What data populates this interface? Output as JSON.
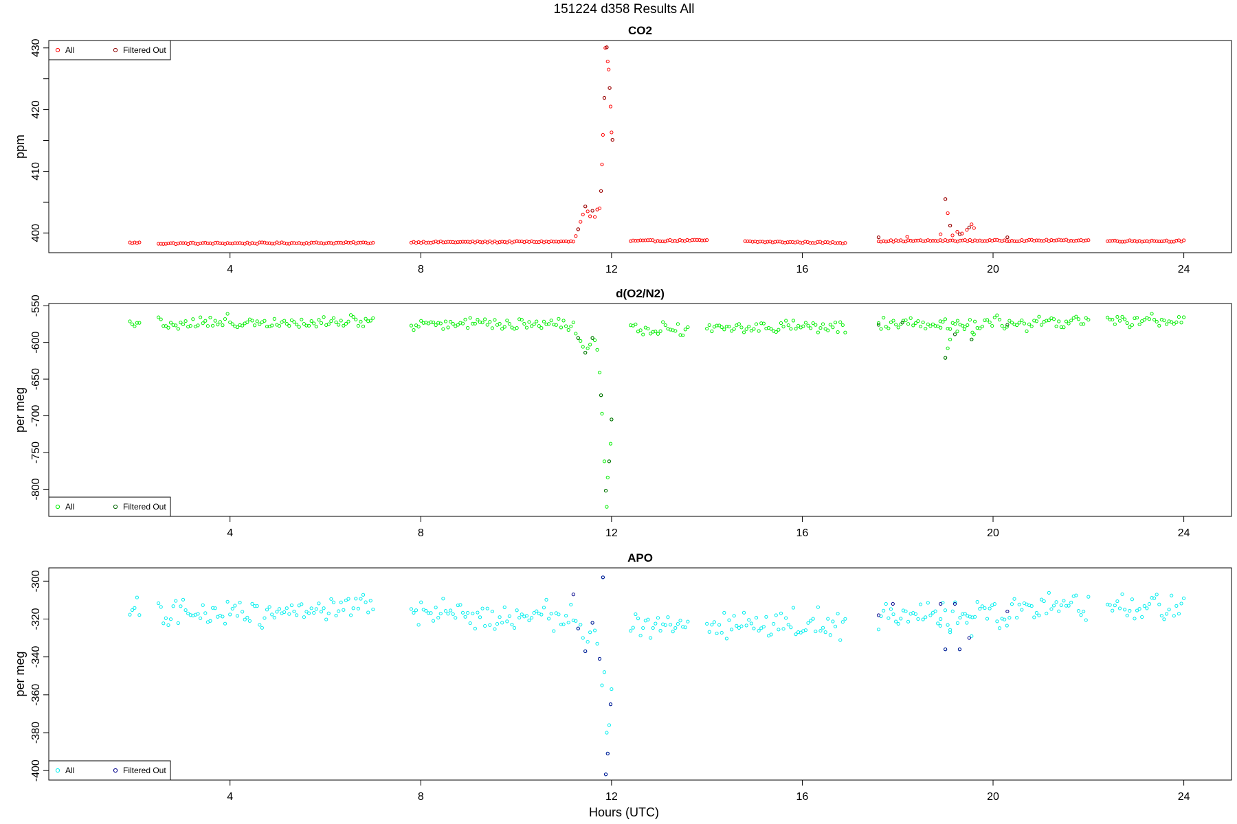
{
  "figure": {
    "title": "151224   d358   Results All",
    "xlabel": "Hours (UTC)"
  },
  "chart_data": [
    {
      "type": "scatter",
      "title": "CO2",
      "xlabel": "Hours (UTC)",
      "ylabel": "ppm",
      "xlim": [
        0.2,
        25.0
      ],
      "ylim": [
        396.8,
        431.2
      ],
      "xticks": [
        4,
        8,
        12,
        16,
        20,
        24
      ],
      "yticks": [
        400,
        410,
        420,
        430
      ],
      "yticks_minor": [
        405,
        415,
        425
      ],
      "legend": {
        "position": "top-left",
        "entries": [
          "All",
          "Filtered Out"
        ]
      },
      "series": [
        {
          "name": "All",
          "color": "#ff0000",
          "segments": [
            {
              "x": [
                1.9,
                2.1
              ],
              "y": [
                398.4,
                398.4
              ]
            },
            {
              "x": [
                2.5,
                7.0
              ],
              "y": [
                398.3,
                398.4
              ]
            },
            {
              "x": [
                7.8,
                11.2
              ],
              "y": [
                398.5,
                398.6
              ]
            },
            {
              "x": [
                12.4,
                14.0
              ],
              "y": [
                398.7,
                398.8
              ]
            },
            {
              "x": [
                14.8,
                16.9
              ],
              "y": [
                398.6,
                398.4
              ]
            },
            {
              "x": [
                17.6,
                22.0
              ],
              "y": [
                398.7,
                398.8
              ]
            },
            {
              "x": [
                22.4,
                24.0
              ],
              "y": [
                398.7,
                398.7
              ]
            }
          ],
          "points": [
            {
              "x": 11.25,
              "y": 399.5
            },
            {
              "x": 11.3,
              "y": 400.6
            },
            {
              "x": 11.35,
              "y": 401.8
            },
            {
              "x": 11.4,
              "y": 403.0
            },
            {
              "x": 11.45,
              "y": 404.3
            },
            {
              "x": 11.5,
              "y": 403.5
            },
            {
              "x": 11.55,
              "y": 402.7
            },
            {
              "x": 11.6,
              "y": 403.6
            },
            {
              "x": 11.65,
              "y": 402.6
            },
            {
              "x": 11.7,
              "y": 403.8
            },
            {
              "x": 11.75,
              "y": 404.0
            },
            {
              "x": 11.78,
              "y": 406.8
            },
            {
              "x": 11.8,
              "y": 411.1
            },
            {
              "x": 11.82,
              "y": 415.9
            },
            {
              "x": 11.85,
              "y": 421.9
            },
            {
              "x": 11.87,
              "y": 430.0
            },
            {
              "x": 11.9,
              "y": 430.1
            },
            {
              "x": 11.92,
              "y": 427.8
            },
            {
              "x": 11.94,
              "y": 426.5
            },
            {
              "x": 11.96,
              "y": 423.5
            },
            {
              "x": 11.98,
              "y": 420.5
            },
            {
              "x": 12.0,
              "y": 416.3
            },
            {
              "x": 12.02,
              "y": 415.1
            },
            {
              "x": 17.6,
              "y": 399.3
            },
            {
              "x": 18.2,
              "y": 399.4
            },
            {
              "x": 18.9,
              "y": 399.8
            },
            {
              "x": 19.0,
              "y": 405.5
            },
            {
              "x": 19.05,
              "y": 403.2
            },
            {
              "x": 19.1,
              "y": 401.2
            },
            {
              "x": 19.15,
              "y": 399.6
            },
            {
              "x": 19.25,
              "y": 400.2
            },
            {
              "x": 19.35,
              "y": 399.9
            },
            {
              "x": 19.45,
              "y": 400.5
            },
            {
              "x": 19.55,
              "y": 401.4
            },
            {
              "x": 19.6,
              "y": 400.8
            },
            {
              "x": 20.3,
              "y": 399.3
            }
          ]
        },
        {
          "name": "Filtered Out",
          "color": "#8b0000",
          "points": [
            {
              "x": 11.3,
              "y": 400.6
            },
            {
              "x": 11.45,
              "y": 404.3
            },
            {
              "x": 11.6,
              "y": 403.6
            },
            {
              "x": 11.78,
              "y": 406.8
            },
            {
              "x": 11.85,
              "y": 421.9
            },
            {
              "x": 11.9,
              "y": 430.1
            },
            {
              "x": 11.96,
              "y": 423.5
            },
            {
              "x": 12.02,
              "y": 415.1
            },
            {
              "x": 17.6,
              "y": 399.3
            },
            {
              "x": 19.0,
              "y": 405.5
            },
            {
              "x": 19.1,
              "y": 401.2
            },
            {
              "x": 19.3,
              "y": 399.8
            },
            {
              "x": 19.5,
              "y": 400.9
            },
            {
              "x": 20.3,
              "y": 399.3
            }
          ]
        }
      ]
    },
    {
      "type": "scatter",
      "title": "d(O2/N2)",
      "xlabel": "Hours (UTC)",
      "ylabel": "per meg",
      "xlim": [
        0.2,
        25.0
      ],
      "ylim": [
        -837,
        -547
      ],
      "xticks": [
        4,
        8,
        12,
        16,
        20,
        24
      ],
      "yticks": [
        -550,
        -600,
        -650,
        -700,
        -750,
        -800
      ],
      "legend": {
        "position": "bottom-left",
        "entries": [
          "All",
          "Filtered Out"
        ]
      },
      "series": [
        {
          "name": "All",
          "color": "#00ee00",
          "segments": [
            {
              "x": [
                1.9,
                2.1
              ],
              "y": [
                -571,
                -571
              ]
            },
            {
              "x": [
                2.5,
                7.0
              ],
              "y": [
                -574,
                -570
              ]
            },
            {
              "x": [
                7.8,
                11.2
              ],
              "y": [
                -574,
                -574
              ]
            },
            {
              "x": [
                12.4,
                13.6
              ],
              "y": [
                -581,
                -581
              ]
            },
            {
              "x": [
                14.0,
                16.9
              ],
              "y": [
                -580,
                -579
              ]
            },
            {
              "x": [
                17.6,
                22.0
              ],
              "y": [
                -578,
                -572
              ]
            },
            {
              "x": [
                22.4,
                24.0
              ],
              "y": [
                -571,
                -571
              ]
            }
          ],
          "noise": 10,
          "points": [
            {
              "x": 11.25,
              "y": -588
            },
            {
              "x": 11.3,
              "y": -594
            },
            {
              "x": 11.35,
              "y": -598
            },
            {
              "x": 11.4,
              "y": -606
            },
            {
              "x": 11.45,
              "y": -614
            },
            {
              "x": 11.5,
              "y": -608
            },
            {
              "x": 11.55,
              "y": -603
            },
            {
              "x": 11.6,
              "y": -594
            },
            {
              "x": 11.65,
              "y": -597
            },
            {
              "x": 11.7,
              "y": -610
            },
            {
              "x": 11.75,
              "y": -641
            },
            {
              "x": 11.78,
              "y": -672
            },
            {
              "x": 11.8,
              "y": -697
            },
            {
              "x": 11.85,
              "y": -762
            },
            {
              "x": 11.88,
              "y": -802
            },
            {
              "x": 11.9,
              "y": -824
            },
            {
              "x": 11.92,
              "y": -784
            },
            {
              "x": 11.95,
              "y": -762
            },
            {
              "x": 11.98,
              "y": -738
            },
            {
              "x": 12.0,
              "y": -705
            },
            {
              "x": 18.9,
              "y": -580
            },
            {
              "x": 19.0,
              "y": -621
            },
            {
              "x": 19.05,
              "y": -608
            },
            {
              "x": 19.1,
              "y": -596
            },
            {
              "x": 19.25,
              "y": -585
            },
            {
              "x": 19.4,
              "y": -582
            },
            {
              "x": 19.55,
              "y": -596
            },
            {
              "x": 19.6,
              "y": -589
            }
          ]
        },
        {
          "name": "Filtered Out",
          "color": "#006400",
          "points": [
            {
              "x": 11.3,
              "y": -594
            },
            {
              "x": 11.45,
              "y": -614
            },
            {
              "x": 11.6,
              "y": -594
            },
            {
              "x": 11.78,
              "y": -672
            },
            {
              "x": 11.88,
              "y": -802
            },
            {
              "x": 11.95,
              "y": -762
            },
            {
              "x": 12.0,
              "y": -705
            },
            {
              "x": 17.6,
              "y": -576
            },
            {
              "x": 18.1,
              "y": -573
            },
            {
              "x": 19.0,
              "y": -621
            },
            {
              "x": 19.2,
              "y": -589
            },
            {
              "x": 19.55,
              "y": -596
            },
            {
              "x": 20.3,
              "y": -576
            }
          ]
        }
      ]
    },
    {
      "type": "scatter",
      "title": "APO",
      "xlabel": "Hours (UTC)",
      "ylabel": "per meg",
      "xlim": [
        0.2,
        25.0
      ],
      "ylim": [
        -405,
        -293
      ],
      "xticks": [
        4,
        8,
        12,
        16,
        20,
        24
      ],
      "yticks": [
        -300,
        -320,
        -340,
        -360,
        -380,
        -400
      ],
      "legend": {
        "position": "bottom-left",
        "entries": [
          "All",
          "Filtered Out"
        ]
      },
      "series": [
        {
          "name": "All",
          "color": "#00eeee",
          "segments": [
            {
              "x": [
                1.9,
                2.1
              ],
              "y": [
                -316,
                -316
              ]
            },
            {
              "x": [
                2.5,
                7.0
              ],
              "y": [
                -318,
                -313
              ]
            },
            {
              "x": [
                7.8,
                11.2
              ],
              "y": [
                -318,
                -318
              ]
            },
            {
              "x": [
                12.4,
                13.6
              ],
              "y": [
                -324,
                -324
              ]
            },
            {
              "x": [
                14.0,
                16.9
              ],
              "y": [
                -323,
                -322
              ]
            },
            {
              "x": [
                17.6,
                22.0
              ],
              "y": [
                -320,
                -314
              ]
            },
            {
              "x": [
                22.4,
                24.0
              ],
              "y": [
                -314,
                -313
              ]
            }
          ],
          "noise": 8,
          "points": [
            {
              "x": 11.25,
              "y": -321
            },
            {
              "x": 11.3,
              "y": -325
            },
            {
              "x": 11.35,
              "y": -323
            },
            {
              "x": 11.4,
              "y": -330
            },
            {
              "x": 11.45,
              "y": -337
            },
            {
              "x": 11.5,
              "y": -332
            },
            {
              "x": 11.55,
              "y": -327
            },
            {
              "x": 11.6,
              "y": -322
            },
            {
              "x": 11.65,
              "y": -326
            },
            {
              "x": 11.7,
              "y": -333
            },
            {
              "x": 11.75,
              "y": -341
            },
            {
              "x": 11.8,
              "y": -355
            },
            {
              "x": 11.82,
              "y": -298
            },
            {
              "x": 11.85,
              "y": -348
            },
            {
              "x": 11.9,
              "y": -380
            },
            {
              "x": 11.92,
              "y": -391
            },
            {
              "x": 11.95,
              "y": -376
            },
            {
              "x": 11.98,
              "y": -365
            },
            {
              "x": 12.0,
              "y": -357
            },
            {
              "x": 11.88,
              "y": -402
            },
            {
              "x": 18.9,
              "y": -320
            },
            {
              "x": 19.0,
              "y": -336
            },
            {
              "x": 19.1,
              "y": -327
            },
            {
              "x": 19.3,
              "y": -336
            },
            {
              "x": 19.45,
              "y": -322
            },
            {
              "x": 19.55,
              "y": -329
            }
          ]
        },
        {
          "name": "Filtered Out",
          "color": "#00008b",
          "points": [
            {
              "x": 11.2,
              "y": -307
            },
            {
              "x": 11.3,
              "y": -325
            },
            {
              "x": 11.45,
              "y": -337
            },
            {
              "x": 11.6,
              "y": -322
            },
            {
              "x": 11.75,
              "y": -341
            },
            {
              "x": 11.82,
              "y": -298
            },
            {
              "x": 11.88,
              "y": -402
            },
            {
              "x": 11.92,
              "y": -391
            },
            {
              "x": 11.98,
              "y": -365
            },
            {
              "x": 17.6,
              "y": -318
            },
            {
              "x": 17.9,
              "y": -312
            },
            {
              "x": 18.9,
              "y": -312
            },
            {
              "x": 19.0,
              "y": -336
            },
            {
              "x": 19.2,
              "y": -312
            },
            {
              "x": 19.3,
              "y": -336
            },
            {
              "x": 19.5,
              "y": -330
            },
            {
              "x": 20.3,
              "y": -316
            }
          ]
        }
      ]
    }
  ]
}
